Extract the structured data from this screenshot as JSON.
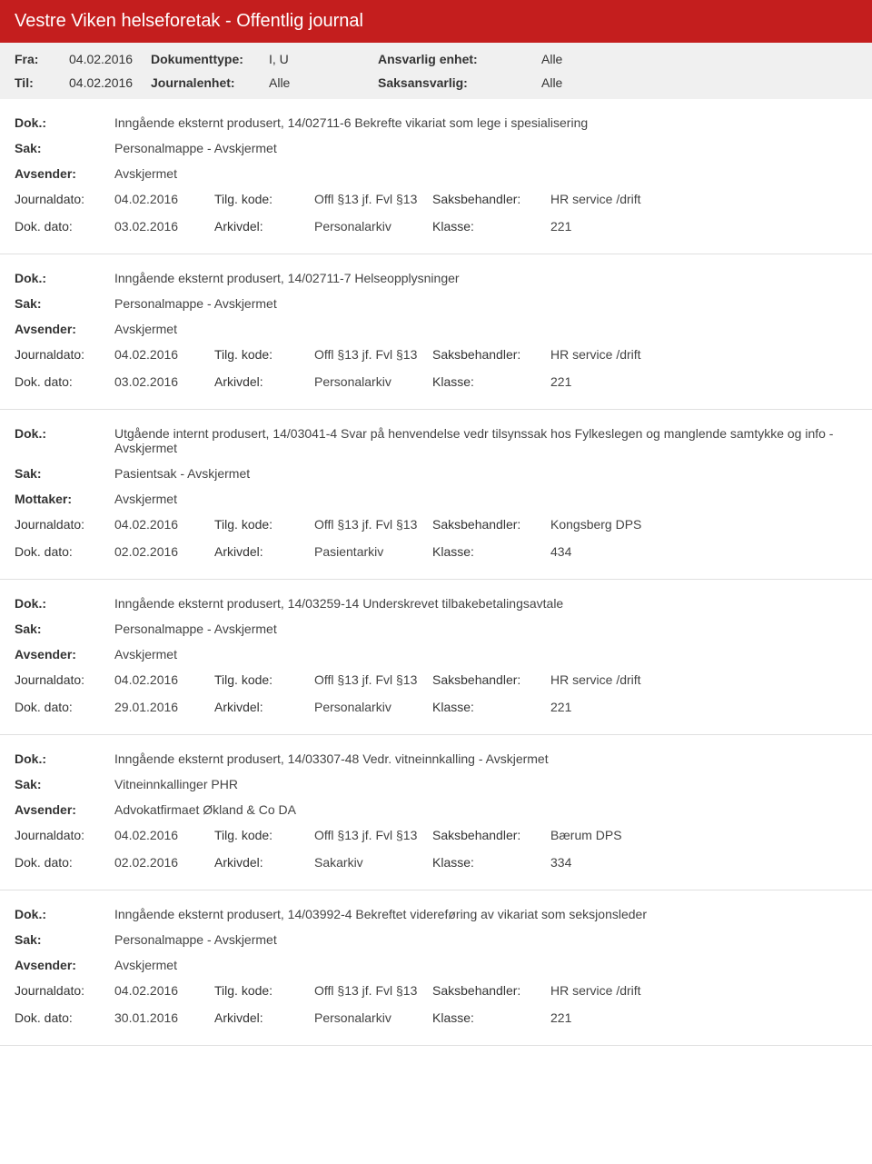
{
  "header": {
    "title": "Vestre Viken helseforetak - Offentlig journal",
    "fra_label": "Fra:",
    "fra_value": "04.02.2016",
    "til_label": "Til:",
    "til_value": "04.02.2016",
    "doktype_label": "Dokumenttype:",
    "doktype_value": "I, U",
    "journalenhet_label": "Journalenhet:",
    "journalenhet_value": "Alle",
    "ansvarlig_label": "Ansvarlig enhet:",
    "ansvarlig_value": "Alle",
    "saksansvarlig_label": "Saksansvarlig:",
    "saksansvarlig_value": "Alle"
  },
  "labels": {
    "dok": "Dok.:",
    "sak": "Sak:",
    "avsender": "Avsender:",
    "mottaker": "Mottaker:",
    "journaldato": "Journaldato:",
    "dokdato": "Dok. dato:",
    "tilgkode": "Tilg. kode:",
    "arkivdel": "Arkivdel:",
    "saksbehandler": "Saksbehandler:",
    "klasse": "Klasse:"
  },
  "entries": [
    {
      "dok": "Inngående eksternt produsert, 14/02711-6 Bekrefte vikariat som lege i spesialisering",
      "sak": "Personalmappe - Avskjermet",
      "party_label": "Avsender:",
      "party": "Avskjermet",
      "journaldato": "04.02.2016",
      "dokdato": "03.02.2016",
      "tilgkode": "Offl §13 jf. Fvl §13",
      "arkivdel": "Personalarkiv",
      "saksbehandler": "HR service /drift",
      "klasse": "221"
    },
    {
      "dok": "Inngående eksternt produsert, 14/02711-7 Helseopplysninger",
      "sak": "Personalmappe - Avskjermet",
      "party_label": "Avsender:",
      "party": "Avskjermet",
      "journaldato": "04.02.2016",
      "dokdato": "03.02.2016",
      "tilgkode": "Offl §13 jf. Fvl §13",
      "arkivdel": "Personalarkiv",
      "saksbehandler": "HR service /drift",
      "klasse": "221"
    },
    {
      "dok": "Utgående internt produsert, 14/03041-4 Svar på henvendelse vedr tilsynssak hos Fylkeslegen og manglende samtykke og info - Avskjermet",
      "sak": "Pasientsak - Avskjermet",
      "party_label": "Mottaker:",
      "party": "Avskjermet",
      "journaldato": "04.02.2016",
      "dokdato": "02.02.2016",
      "tilgkode": "Offl §13 jf. Fvl §13",
      "arkivdel": "Pasientarkiv",
      "saksbehandler": "Kongsberg DPS",
      "klasse": "434"
    },
    {
      "dok": "Inngående eksternt produsert, 14/03259-14 Underskrevet tilbakebetalingsavtale",
      "sak": "Personalmappe - Avskjermet",
      "party_label": "Avsender:",
      "party": "Avskjermet",
      "journaldato": "04.02.2016",
      "dokdato": "29.01.2016",
      "tilgkode": "Offl §13 jf. Fvl §13",
      "arkivdel": "Personalarkiv",
      "saksbehandler": "HR service /drift",
      "klasse": "221"
    },
    {
      "dok": "Inngående eksternt produsert, 14/03307-48 Vedr. vitneinnkalling - Avskjermet",
      "sak": "Vitneinnkallinger PHR",
      "party_label": "Avsender:",
      "party": "Advokatfirmaet Økland & Co DA",
      "journaldato": "04.02.2016",
      "dokdato": "02.02.2016",
      "tilgkode": "Offl §13 jf. Fvl §13",
      "arkivdel": "Sakarkiv",
      "saksbehandler": "Bærum DPS",
      "klasse": "334"
    },
    {
      "dok": "Inngående eksternt produsert, 14/03992-4 Bekreftet videreføring av vikariat som seksjonsleder",
      "sak": "Personalmappe - Avskjermet",
      "party_label": "Avsender:",
      "party": "Avskjermet",
      "journaldato": "04.02.2016",
      "dokdato": "30.01.2016",
      "tilgkode": "Offl §13 jf. Fvl §13",
      "arkivdel": "Personalarkiv",
      "saksbehandler": "HR service /drift",
      "klasse": "221"
    }
  ]
}
